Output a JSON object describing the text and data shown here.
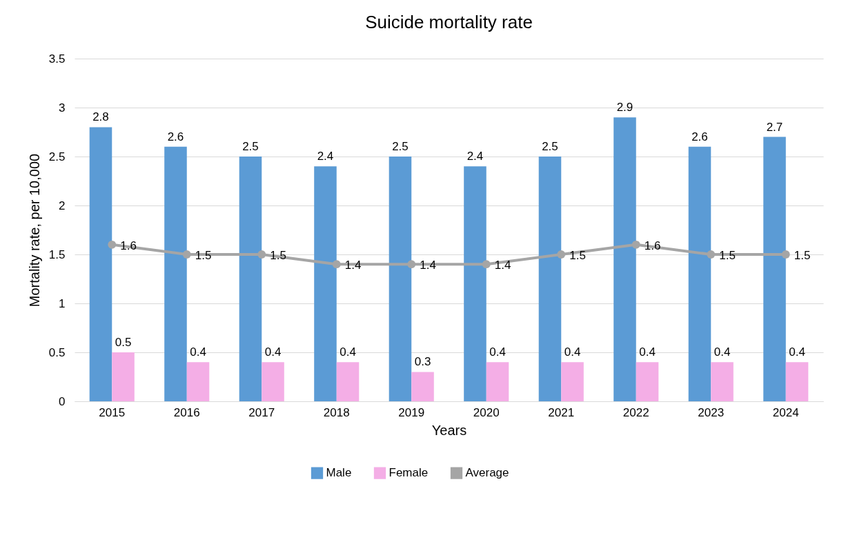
{
  "chart_data": {
    "type": "bar",
    "title": "Suicide mortality rate",
    "xlabel": "Years",
    "ylabel": "Mortality rate, per 10,000",
    "categories": [
      "2015",
      "2016",
      "2017",
      "2018",
      "2019",
      "2020",
      "2021",
      "2022",
      "2023",
      "2024"
    ],
    "series": [
      {
        "name": "Male",
        "type": "bar",
        "color": "#5b9bd5",
        "values": [
          2.8,
          2.6,
          2.5,
          2.4,
          2.5,
          2.4,
          2.5,
          2.9,
          2.6,
          2.7
        ]
      },
      {
        "name": "Female",
        "type": "bar",
        "color": "#f4aee6",
        "values": [
          0.5,
          0.4,
          0.4,
          0.4,
          0.3,
          0.4,
          0.4,
          0.4,
          0.4,
          0.4
        ]
      },
      {
        "name": "Average",
        "type": "line",
        "color": "#a5a5a5",
        "values": [
          1.6,
          1.5,
          1.5,
          1.4,
          1.4,
          1.4,
          1.5,
          1.6,
          1.5,
          1.5
        ]
      }
    ],
    "ylim": [
      0,
      3.5
    ],
    "yticks": [
      0,
      0.5,
      1,
      1.5,
      2,
      2.5,
      3,
      3.5
    ],
    "grid": "y",
    "legend": "bottom",
    "marker": "circle",
    "line_style": "solid",
    "data_labels": true
  }
}
